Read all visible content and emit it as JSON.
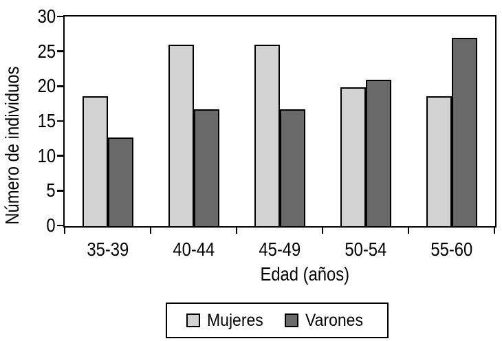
{
  "figure": {
    "background": "#ffffff",
    "frame_color": "#000000"
  },
  "chart_data": {
    "type": "bar",
    "title": "",
    "categories": [
      "35-39",
      "40-44",
      "45-49",
      "50-54",
      "55-60"
    ],
    "series": [
      {
        "name": "Mujeres",
        "color": "#d2d2d2",
        "values": [
          18.7,
          26.1,
          26.1,
          19.9,
          18.7
        ]
      },
      {
        "name": "Varones",
        "color": "#696969",
        "values": [
          12.7,
          16.8,
          16.8,
          21,
          27
        ]
      }
    ],
    "xlabel": "Edad (años)",
    "ylabel": "Número de individuos",
    "ylim": [
      0,
      30
    ],
    "yticks": [
      0,
      5,
      10,
      15,
      20,
      25,
      30
    ],
    "grid": false,
    "legend_position": "bottom-center",
    "bar_border_color": "#000000"
  }
}
